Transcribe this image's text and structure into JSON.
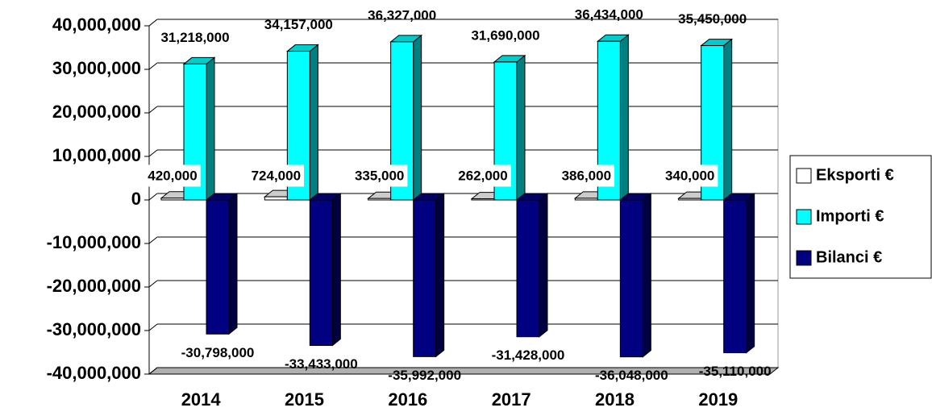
{
  "chart_data": {
    "type": "bar3d",
    "categories": [
      "2014",
      "2015",
      "2016",
      "2017",
      "2018",
      "2019"
    ],
    "series": [
      {
        "name": "Eksporti €",
        "color": "#ffffff",
        "values": [
          420000,
          724000,
          335000,
          262000,
          386000,
          340000
        ],
        "value_labels": [
          "420,000",
          "724,000",
          "335,000",
          "262,000",
          "386,000",
          "340,000"
        ]
      },
      {
        "name": "Importi €",
        "color": "#00ffff",
        "values": [
          31218000,
          34157000,
          36327000,
          31690000,
          36434000,
          35450000
        ],
        "value_labels": [
          "31,218,000",
          "34,157,000",
          "36,327,000",
          "31,690,000",
          "36,434,000",
          "35,450,000"
        ]
      },
      {
        "name": "Bilanci €",
        "color": "#000080",
        "values": [
          -30798000,
          -33433000,
          -35992000,
          -31428000,
          -36048000,
          -35110000
        ],
        "value_labels": [
          "-30,798,000",
          "-33,433,000",
          "-35,992,000",
          "-31,428,000",
          "-36,048,000",
          "-35,110,000"
        ]
      }
    ],
    "ylim": [
      -40000000,
      40000000
    ],
    "yticks": [
      {
        "value": -40000000,
        "label": "-40,000,000"
      },
      {
        "value": -30000000,
        "label": "-30,000,000"
      },
      {
        "value": -20000000,
        "label": "-20,000,000"
      },
      {
        "value": -10000000,
        "label": "-10,000,000"
      },
      0,
      {
        "value": 10000000,
        "label": "10,000,000"
      },
      {
        "value": 20000000,
        "label": "20,000,000"
      },
      {
        "value": 30000000,
        "label": "30,000,000"
      },
      {
        "value": 40000000,
        "label": "40,000,000"
      }
    ],
    "grid": true,
    "legend": "right"
  }
}
